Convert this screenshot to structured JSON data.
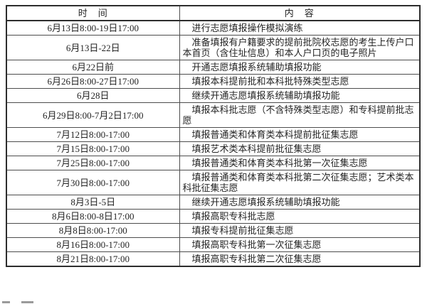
{
  "colors": {
    "text": "#242424",
    "border_inner": "#4d4d4d",
    "border_outer": "#2d2d2d",
    "page_background": "#ffffff"
  },
  "table": {
    "headers": [
      "时　间",
      "内　容"
    ],
    "rows": [
      {
        "time": "6月13日8:00-19日17:00",
        "content": "进行志愿填报操作模拟演练"
      },
      {
        "time": "6月13日-22日",
        "content": "准备填报有户籍要求的提前批院校志愿的考生上传户口本首页（含住址信息）和本人户口页的电子照片"
      },
      {
        "time": "6月22日前",
        "content": "开通志愿填报系统辅助填报功能"
      },
      {
        "time": "6月26日8:00-27日17:00",
        "content": "填报本科提前批和本科批特殊类型志愿"
      },
      {
        "time": "6月28日",
        "content": "继续开通志愿填报系统辅助填报功能"
      },
      {
        "time": "6月29日8:00-7月2日17:00",
        "content": "填报本科批志愿（不含特殊类型志愿）和专科提前批志愿"
      },
      {
        "time": "7月12日8:00-17:00",
        "content": "填报普通类和体育类本科提前批征集志愿"
      },
      {
        "time": "7月15日8:00-17:00",
        "content": "填报艺术类本科提前批征集志愿"
      },
      {
        "time": "7月25日8:00-17:00",
        "content": "填报普通类和体育类本科批第一次征集志愿"
      },
      {
        "time": "7月30日8:00-17:00",
        "content": "填报普通类和体育类本科批第二次征集志愿；艺术类本科批征集志愿"
      },
      {
        "time": "8月3日-5日",
        "content": "继续开通志愿填报系统辅助填报功能"
      },
      {
        "time": "8月6日8:00-8日17:00",
        "content": "填报高职专科批志愿"
      },
      {
        "time": "8月8日8:00-17:00",
        "content": "填报专科提前批征集志愿"
      },
      {
        "time": "8月16日8:00-17:00",
        "content": "填报高职专科批第一次征集志愿"
      },
      {
        "time": "8月21日8:00-17:00",
        "content": "填报高职专科批第二次征集志愿"
      }
    ]
  }
}
